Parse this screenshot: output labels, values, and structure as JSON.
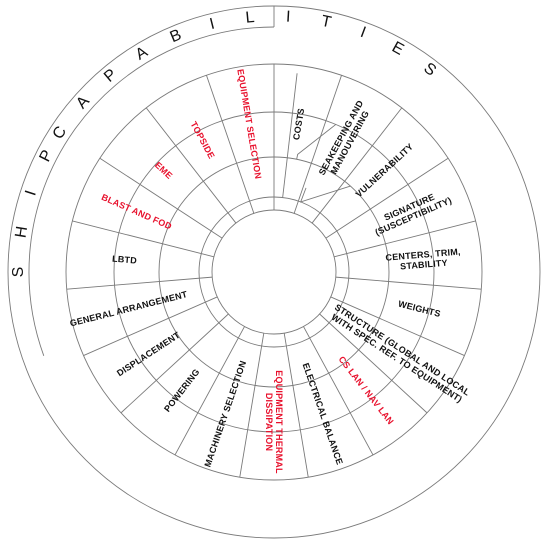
{
  "title_letters": [
    "S",
    "H",
    "I",
    "P",
    "C",
    "A",
    "P",
    "A",
    "B",
    "I",
    "L",
    "I",
    "T",
    "I",
    "E",
    "S"
  ],
  "colors": {
    "black_label": "#111111",
    "red_label": "#e8112d",
    "lines": "#7a7a7a"
  },
  "segments": [
    {
      "lines": [
        "COSTS"
      ],
      "color": "black"
    },
    {
      "lines": [
        "SEAKEEPING AND",
        "MANOUVERING"
      ],
      "color": "black"
    },
    {
      "lines": [
        "VULNERABILITY"
      ],
      "color": "black"
    },
    {
      "lines": [
        "SIGNATURE",
        "(SUSCEPTIBILITY)"
      ],
      "color": "black"
    },
    {
      "lines": [
        "CENTERS, TRIM,",
        "STABILITY"
      ],
      "color": "black"
    },
    {
      "lines": [
        "WEIGHTS"
      ],
      "color": "black"
    },
    {
      "lines": [
        "STRUCTURE (GLOBAL AND LOCAL",
        "WITH SPEC. REF. TO EQUIPMENT)"
      ],
      "color": "black"
    },
    {
      "lines": [
        "CS LAN / NAV LAN"
      ],
      "color": "red"
    },
    {
      "lines": [
        "ELECTRICAL BALANCE"
      ],
      "color": "black"
    },
    {
      "lines": [
        "EQUIPMENT THERMAL",
        "DISSIPATION"
      ],
      "color": "red"
    },
    {
      "lines": [
        "MACHINERY SELECTION"
      ],
      "color": "black"
    },
    {
      "lines": [
        "POWERING"
      ],
      "color": "black"
    },
    {
      "lines": [
        "DISPLACEMENT"
      ],
      "color": "black"
    },
    {
      "lines": [
        "GENERAL ARRANGEMENT"
      ],
      "color": "black"
    },
    {
      "lines": [
        "LBTD"
      ],
      "color": "black"
    },
    {
      "lines": [
        "BLAST AND FOD"
      ],
      "color": "red"
    },
    {
      "lines": [
        "EME"
      ],
      "color": "red"
    },
    {
      "lines": [
        "TOPSIDE"
      ],
      "color": "red"
    },
    {
      "lines": [
        "EQUIPMENT SELECTION"
      ],
      "color": "red"
    }
  ]
}
